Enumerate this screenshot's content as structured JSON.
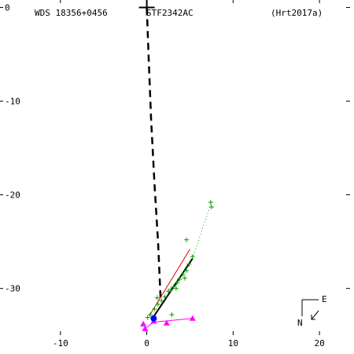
{
  "header": {
    "left": "WDS 18356+0456",
    "center": "STF2342AC",
    "right": "(Hrt2017a)"
  },
  "compass": {
    "north": "N",
    "east": "E"
  },
  "colors": {
    "observations": "#00a000",
    "fit": "#000000",
    "reference_fit": "#e00000",
    "triangles": "#ff00ff",
    "primary": "#0000ff",
    "motion_path": "#000000"
  },
  "chart_data": {
    "type": "scatter",
    "title": "",
    "xlabel": "",
    "ylabel": "",
    "xlim": [
      -17,
      24
    ],
    "ylim": [
      -37,
      0.8
    ],
    "x_ticks": [
      -10,
      0,
      10,
      20
    ],
    "y_ticks": [
      0,
      -10,
      -20,
      -30
    ],
    "x_tick_labels": [
      "-10",
      "0",
      "10",
      "20"
    ],
    "y_tick_labels": [
      "0",
      "-10",
      "-20",
      "-30"
    ],
    "grid": false,
    "primary_position": {
      "x": 0,
      "y": 0
    },
    "motion_path": [
      {
        "x": 0,
        "y": 0
      },
      {
        "x": 0.2,
        "y": -5
      },
      {
        "x": 0.5,
        "y": -12
      },
      {
        "x": 0.9,
        "y": -19
      },
      {
        "x": 1.3,
        "y": -25
      },
      {
        "x": 1.6,
        "y": -31
      }
    ],
    "observations": [
      {
        "x": 7.4,
        "y": -20.8
      },
      {
        "x": 7.5,
        "y": -21.3
      },
      {
        "x": 4.6,
        "y": -24.8
      },
      {
        "x": 5.3,
        "y": -26.6
      },
      {
        "x": 4.9,
        "y": -27.4
      },
      {
        "x": 4.6,
        "y": -28.1
      },
      {
        "x": 4.2,
        "y": -28.5
      },
      {
        "x": 4.4,
        "y": -28.9
      },
      {
        "x": 3.8,
        "y": -29.0
      },
      {
        "x": 3.5,
        "y": -29.4
      },
      {
        "x": 3.1,
        "y": -29.8
      },
      {
        "x": 2.8,
        "y": -30.1
      },
      {
        "x": 2.5,
        "y": -30.3
      },
      {
        "x": 2.1,
        "y": -30.9
      },
      {
        "x": 1.7,
        "y": -31.3
      },
      {
        "x": 1.3,
        "y": -31.7
      },
      {
        "x": 0.9,
        "y": -32.2
      },
      {
        "x": 0.4,
        "y": -32.8
      },
      {
        "x": 0.1,
        "y": -33.1
      },
      {
        "x": 2.9,
        "y": -32.8
      },
      {
        "x": 3.4,
        "y": -30.0
      },
      {
        "x": 1.2,
        "y": -31.0
      }
    ],
    "fit_line": [
      {
        "x": 0.8,
        "y": -33.0
      },
      {
        "x": 5.3,
        "y": -26.8
      }
    ],
    "reference_fit_line": [
      {
        "x": 0.3,
        "y": -32.9
      },
      {
        "x": 5.0,
        "y": -25.8
      }
    ],
    "trend_dotted": [
      {
        "x": 5.3,
        "y": -26.8
      },
      {
        "x": 6.5,
        "y": -23.5
      },
      {
        "x": 7.5,
        "y": -20.8
      }
    ],
    "triangles": [
      {
        "x": -0.4,
        "y": -33.8
      },
      {
        "x": -0.2,
        "y": -34.3
      },
      {
        "x": 0.8,
        "y": -33.5
      },
      {
        "x": 2.3,
        "y": -33.7
      },
      {
        "x": 5.3,
        "y": -33.2
      }
    ],
    "triangle_path": [
      {
        "x": -0.2,
        "y": -34.3
      },
      {
        "x": 0.8,
        "y": -33.6
      },
      {
        "x": 5.3,
        "y": -33.2
      }
    ],
    "primary_marker": {
      "x": 0.8,
      "y": -33.2
    }
  }
}
